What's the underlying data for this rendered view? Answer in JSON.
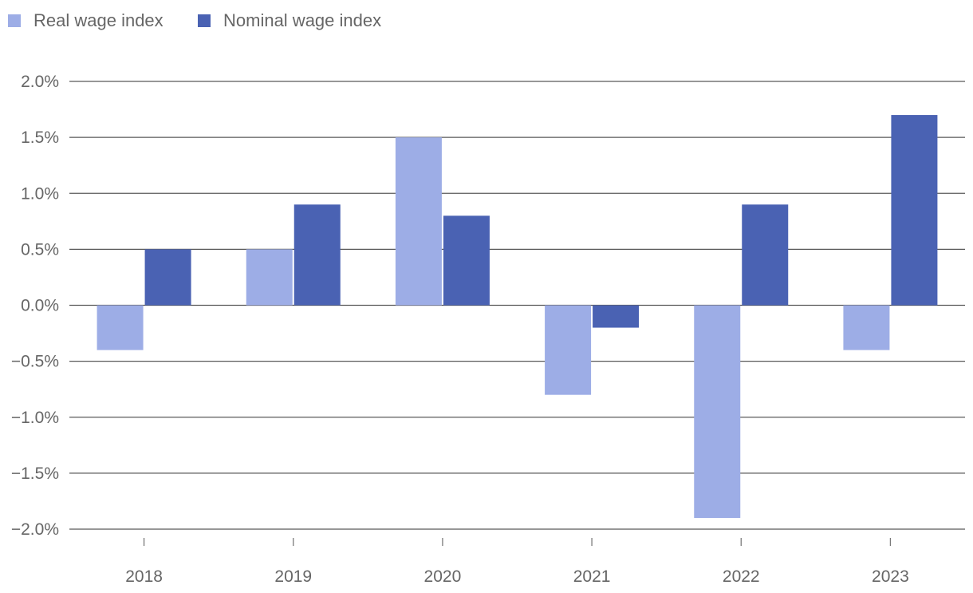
{
  "chart_data": {
    "type": "bar",
    "title": "",
    "xlabel": "",
    "ylabel": "",
    "categories": [
      "2018",
      "2019",
      "2020",
      "2021",
      "2022",
      "2023"
    ],
    "series": [
      {
        "name": "Real wage index",
        "color": "#9dade6",
        "values": [
          -0.4,
          0.5,
          1.5,
          -0.8,
          -1.9,
          -0.4
        ]
      },
      {
        "name": "Nominal wage index",
        "color": "#4a62b3",
        "values": [
          0.5,
          0.9,
          0.8,
          -0.2,
          0.9,
          1.7
        ]
      }
    ],
    "ylim": [
      -2.0,
      2.0
    ],
    "yticks": [
      2.0,
      1.5,
      1.0,
      0.5,
      0.0,
      -0.5,
      -1.0,
      -1.5,
      -2.0
    ],
    "ytick_labels": [
      "2.0%",
      "1.5%",
      "1.0%",
      "0.5%",
      "0.0%",
      "−0.5%",
      "−1.0%",
      "−1.5%",
      "−2.0%"
    ],
    "grid": true,
    "legend_position": "top-left"
  }
}
